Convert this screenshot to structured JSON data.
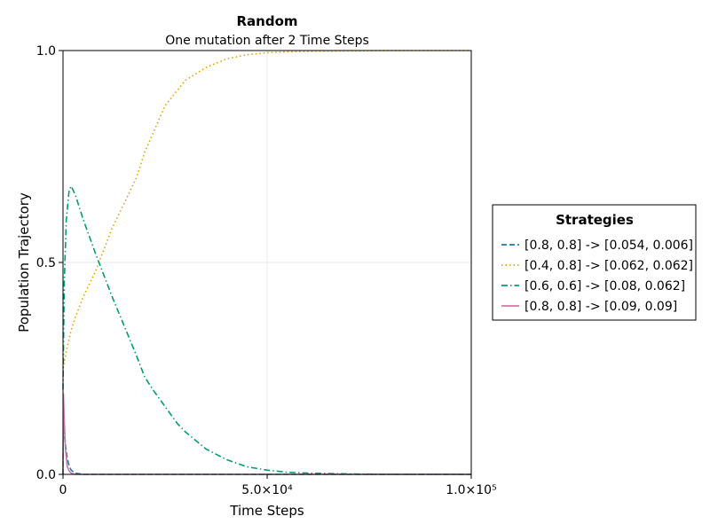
{
  "chart_data": {
    "type": "line",
    "title": "Random",
    "subtitle": "One mutation after 2 Time Steps",
    "xlabel": "Time Steps",
    "ylabel": "Population Trajectory",
    "xlim": [
      0,
      100000
    ],
    "ylim": [
      0,
      1
    ],
    "xticks": [
      {
        "value": 0,
        "label": "0"
      },
      {
        "value": 50000,
        "label": "5.0×10⁴"
      },
      {
        "value": 100000,
        "label": "1.0×10⁵"
      }
    ],
    "yticks": [
      {
        "value": 0,
        "label": "0.0"
      },
      {
        "value": 0.5,
        "label": "0.5"
      },
      {
        "value": 1,
        "label": "1.0"
      }
    ],
    "grid": true,
    "legend": {
      "title": "Strategies",
      "placement": "right"
    },
    "series": [
      {
        "name": "[0.8, 0.8] -> [0.054, 0.006]",
        "color": "#1f77b4",
        "dash": "dashed",
        "x": [
          0,
          100,
          300,
          600,
          1000,
          1500,
          2000,
          3000,
          5000,
          100000
        ],
        "y": [
          0.0,
          0.12,
          0.1,
          0.07,
          0.04,
          0.02,
          0.01,
          0.003,
          0.0,
          0.0
        ]
      },
      {
        "name": "[0.4, 0.8] -> [0.062, 0.062]",
        "color": "#e69f00",
        "dash": "dotted",
        "x": [
          0,
          1000,
          2000,
          3000,
          5000,
          8000,
          10000,
          12000,
          15000,
          18000,
          20000,
          25000,
          30000,
          35000,
          40000,
          45000,
          50000,
          55000,
          60000,
          70000,
          80000,
          90000,
          100000
        ],
        "y": [
          0.25,
          0.3,
          0.34,
          0.37,
          0.42,
          0.48,
          0.53,
          0.58,
          0.64,
          0.7,
          0.76,
          0.87,
          0.93,
          0.96,
          0.98,
          0.99,
          0.995,
          0.997,
          0.998,
          0.999,
          1.0,
          1.0,
          1.0
        ]
      },
      {
        "name": "[0.6, 0.6] -> [0.08, 0.062]",
        "color": "#009e73",
        "dash": "dashdot",
        "x": [
          0,
          300,
          800,
          1500,
          2000,
          3000,
          5000,
          8000,
          10000,
          12000,
          15000,
          18000,
          20000,
          22000,
          25000,
          28000,
          30000,
          35000,
          40000,
          45000,
          50000,
          55000,
          60000,
          70000,
          80000,
          100000
        ],
        "y": [
          0.2,
          0.45,
          0.6,
          0.67,
          0.68,
          0.66,
          0.6,
          0.52,
          0.47,
          0.42,
          0.35,
          0.28,
          0.23,
          0.2,
          0.16,
          0.12,
          0.1,
          0.06,
          0.035,
          0.018,
          0.01,
          0.005,
          0.003,
          0.001,
          0.0,
          0.0
        ]
      },
      {
        "name": "[0.8, 0.8] -> [0.09, 0.09]",
        "color": "#cc79a7",
        "dash": "solid",
        "x": [
          0,
          100,
          300,
          600,
          1000,
          1500,
          2000,
          3000,
          100000
        ],
        "y": [
          0.0,
          0.19,
          0.13,
          0.06,
          0.02,
          0.008,
          0.003,
          0.0,
          0.0
        ]
      }
    ]
  }
}
